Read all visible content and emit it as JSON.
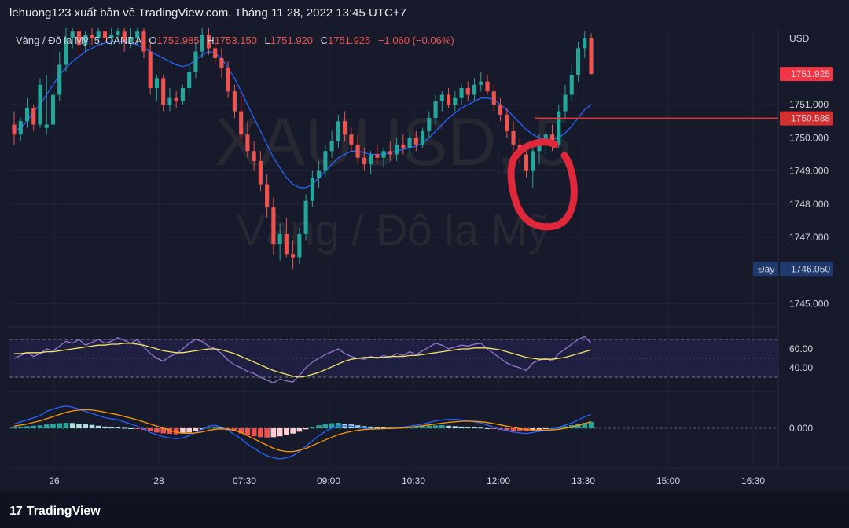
{
  "header": {
    "attribution": "lehuong123 xuất bản về TradingView.com, Tháng 11 28, 2022 13:45 UTC+7"
  },
  "legend": {
    "symbol": "Vàng / Đô la Mỹ, 5, OANDA",
    "open_label": "O",
    "open": "1752.985",
    "high_label": "H",
    "high": "1753.150",
    "low_label": "L",
    "low": "1751.920",
    "close_label": "C",
    "close": "1751.925",
    "change": "−1.060 (−0.06%)"
  },
  "watermark": {
    "ticker": "XAUUSD, 5",
    "name": "Vàng / Đô la Mỹ"
  },
  "price_axis": {
    "currency": "USD",
    "last_price": "1751.925",
    "line_price": "1750.588",
    "low_tag": "Đáy",
    "low_price": "1746.050"
  },
  "footer": {
    "logo": "17",
    "brand": "TradingView"
  },
  "colors": {
    "up": "#26a69a",
    "down": "#ef5350",
    "ma": "#2962ff",
    "rsi": "#9575cd",
    "rsi_ma": "#f5e663",
    "macd": "#2962ff",
    "signal": "#ff9800",
    "annotation": "#e0283b"
  },
  "chart_data": [
    {
      "type": "candlestick",
      "title": "XAUUSD, 5",
      "ylim": [
        1744.4,
        1753.3
      ],
      "yticks": [
        "1745.000",
        "1747.000",
        "1748.000",
        "1749.000",
        "1750.000",
        "1751.000"
      ],
      "xticks": [
        "26",
        "28",
        "07:30",
        "09:00",
        "10:30",
        "12:00",
        "13:30",
        "15:00",
        "16:30"
      ],
      "horizontal_line": 1750.588,
      "last_price": 1751.925,
      "low_marker": 1746.05,
      "ohlc": [
        [
          1750.4,
          1750.8,
          1749.8,
          1750.1
        ],
        [
          1750.1,
          1750.6,
          1749.9,
          1750.5
        ],
        [
          1750.5,
          1751.2,
          1750.3,
          1750.9
        ],
        [
          1750.9,
          1751.0,
          1750.2,
          1750.4
        ],
        [
          1750.4,
          1751.8,
          1750.3,
          1751.6
        ],
        [
          1750.3,
          1751.9,
          1750.1,
          1750.4
        ],
        [
          1750.4,
          1751.4,
          1750.3,
          1751.3
        ],
        [
          1751.3,
          1752.6,
          1751.1,
          1752.2
        ],
        [
          1752.2,
          1753.3,
          1752.0,
          1753.0
        ],
        [
          1753.0,
          1753.3,
          1752.7,
          1753.2
        ],
        [
          1753.2,
          1753.3,
          1752.5,
          1752.8
        ],
        [
          1752.8,
          1753.2,
          1752.6,
          1753.1
        ],
        [
          1753.1,
          1753.3,
          1752.8,
          1753.0
        ],
        [
          1753.0,
          1753.3,
          1752.9,
          1753.2
        ],
        [
          1753.2,
          1753.3,
          1752.9,
          1753.0
        ],
        [
          1753.0,
          1753.3,
          1752.8,
          1753.1
        ],
        [
          1753.1,
          1753.3,
          1752.9,
          1753.2
        ],
        [
          1753.2,
          1753.3,
          1752.6,
          1752.9
        ],
        [
          1752.9,
          1753.3,
          1752.7,
          1753.0
        ],
        [
          1753.0,
          1753.3,
          1752.8,
          1753.2
        ],
        [
          1753.2,
          1753.3,
          1752.4,
          1752.6
        ],
        [
          1752.6,
          1752.9,
          1751.3,
          1751.5
        ],
        [
          1751.5,
          1751.9,
          1751.1,
          1751.8
        ],
        [
          1751.8,
          1751.9,
          1750.8,
          1751.0
        ],
        [
          1751.0,
          1751.5,
          1750.8,
          1751.2
        ],
        [
          1751.2,
          1751.4,
          1750.9,
          1751.1
        ],
        [
          1751.1,
          1751.6,
          1751.0,
          1751.5
        ],
        [
          1751.5,
          1752.2,
          1751.3,
          1752.0
        ],
        [
          1752.0,
          1752.9,
          1751.8,
          1752.6
        ],
        [
          1752.6,
          1753.3,
          1752.4,
          1753.1
        ],
        [
          1753.1,
          1753.3,
          1752.5,
          1752.7
        ],
        [
          1752.7,
          1753.0,
          1752.2,
          1752.4
        ],
        [
          1752.4,
          1752.7,
          1751.8,
          1752.1
        ],
        [
          1752.1,
          1752.3,
          1751.2,
          1751.4
        ],
        [
          1751.4,
          1751.6,
          1750.6,
          1750.8
        ],
        [
          1750.8,
          1751.3,
          1749.9,
          1750.1
        ],
        [
          1750.1,
          1750.5,
          1749.4,
          1749.6
        ],
        [
          1749.6,
          1749.9,
          1749.0,
          1749.3
        ],
        [
          1749.3,
          1749.6,
          1748.4,
          1748.6
        ],
        [
          1748.6,
          1748.9,
          1747.6,
          1747.9
        ],
        [
          1747.9,
          1748.2,
          1746.5,
          1746.8
        ],
        [
          1746.8,
          1747.4,
          1746.3,
          1747.1
        ],
        [
          1747.1,
          1747.6,
          1746.4,
          1746.5
        ],
        [
          1746.5,
          1746.9,
          1746.05,
          1746.4
        ],
        [
          1746.4,
          1747.3,
          1746.2,
          1747.1
        ],
        [
          1747.1,
          1748.3,
          1746.9,
          1748.1
        ],
        [
          1748.1,
          1749.0,
          1747.9,
          1748.8
        ],
        [
          1748.8,
          1749.3,
          1748.5,
          1749.0
        ],
        [
          1749.0,
          1749.8,
          1748.8,
          1749.6
        ],
        [
          1749.6,
          1750.2,
          1749.4,
          1749.9
        ],
        [
          1749.9,
          1750.7,
          1749.7,
          1750.5
        ],
        [
          1750.5,
          1750.8,
          1749.9,
          1750.1
        ],
        [
          1750.1,
          1750.3,
          1749.6,
          1749.8
        ],
        [
          1749.8,
          1750.1,
          1749.2,
          1749.4
        ],
        [
          1749.4,
          1749.7,
          1749.0,
          1749.2
        ],
        [
          1749.2,
          1749.6,
          1748.9,
          1749.5
        ],
        [
          1749.5,
          1749.8,
          1749.2,
          1749.4
        ],
        [
          1749.4,
          1749.7,
          1749.1,
          1749.6
        ],
        [
          1749.6,
          1749.9,
          1749.3,
          1749.5
        ],
        [
          1749.5,
          1750.0,
          1749.3,
          1749.8
        ],
        [
          1749.8,
          1750.1,
          1749.5,
          1749.7
        ],
        [
          1749.7,
          1750.1,
          1749.5,
          1750.0
        ],
        [
          1750.0,
          1750.2,
          1749.6,
          1749.8
        ],
        [
          1749.8,
          1750.3,
          1749.7,
          1750.2
        ],
        [
          1750.2,
          1750.8,
          1750.0,
          1750.6
        ],
        [
          1750.6,
          1751.3,
          1750.4,
          1751.1
        ],
        [
          1751.1,
          1751.4,
          1750.8,
          1751.3
        ],
        [
          1751.3,
          1751.5,
          1750.9,
          1751.0
        ],
        [
          1751.0,
          1751.4,
          1750.8,
          1751.2
        ],
        [
          1751.2,
          1751.6,
          1751.0,
          1751.5
        ],
        [
          1751.5,
          1751.7,
          1751.1,
          1751.3
        ],
        [
          1751.3,
          1751.8,
          1751.1,
          1751.6
        ],
        [
          1751.6,
          1752.0,
          1751.4,
          1751.7
        ],
        [
          1751.7,
          1751.9,
          1751.3,
          1751.4
        ],
        [
          1751.4,
          1751.6,
          1750.8,
          1751.0
        ],
        [
          1751.0,
          1751.2,
          1750.5,
          1750.7
        ],
        [
          1750.7,
          1750.9,
          1750.0,
          1750.2
        ],
        [
          1750.2,
          1750.5,
          1749.6,
          1749.8
        ],
        [
          1749.8,
          1750.0,
          1749.2,
          1749.5
        ],
        [
          1749.5,
          1749.7,
          1748.8,
          1749.0
        ],
        [
          1749.0,
          1749.8,
          1748.5,
          1749.6
        ],
        [
          1749.6,
          1750.1,
          1749.2,
          1749.9
        ],
        [
          1749.9,
          1750.2,
          1749.5,
          1750.1
        ],
        [
          1750.1,
          1750.4,
          1749.6,
          1749.8
        ],
        [
          1749.8,
          1751.0,
          1749.7,
          1750.8
        ],
        [
          1750.8,
          1751.6,
          1750.6,
          1751.3
        ],
        [
          1751.3,
          1752.2,
          1751.1,
          1751.9
        ],
        [
          1751.9,
          1752.9,
          1751.7,
          1752.7
        ],
        [
          1752.7,
          1753.2,
          1752.4,
          1753.0
        ],
        [
          1753.0,
          1753.15,
          1751.9,
          1751.925
        ]
      ],
      "ma": [
        1750.2,
        1750.3,
        1750.5,
        1750.8,
        1751.0,
        1751.3,
        1751.6,
        1751.9,
        1752.1,
        1752.3,
        1752.45,
        1752.6,
        1752.7,
        1752.8,
        1752.85,
        1752.9,
        1752.9,
        1752.9,
        1752.85,
        1752.8,
        1752.7,
        1752.6,
        1752.5,
        1752.4,
        1752.3,
        1752.2,
        1752.15,
        1752.2,
        1752.35,
        1752.5,
        1752.6,
        1752.55,
        1752.4,
        1752.1,
        1751.8,
        1751.4,
        1751.0,
        1750.6,
        1750.2,
        1749.8,
        1749.4,
        1749.1,
        1748.8,
        1748.6,
        1748.5,
        1748.5,
        1748.6,
        1748.8,
        1749.0,
        1749.2,
        1749.4,
        1749.5,
        1749.6,
        1749.6,
        1749.55,
        1749.5,
        1749.5,
        1749.5,
        1749.55,
        1749.6,
        1749.65,
        1749.7,
        1749.75,
        1749.85,
        1750.0,
        1750.2,
        1750.4,
        1750.6,
        1750.75,
        1750.9,
        1751.0,
        1751.1,
        1751.2,
        1751.2,
        1751.15,
        1751.0,
        1750.85,
        1750.65,
        1750.45,
        1750.25,
        1750.1,
        1750.0,
        1749.95,
        1749.95,
        1750.0,
        1750.15,
        1750.35,
        1750.6,
        1750.85,
        1751.0
      ]
    },
    {
      "type": "line",
      "title": "RSI",
      "ylim": [
        20,
        80
      ],
      "yticks": [
        "60.00",
        "40.00"
      ],
      "band": [
        30,
        70
      ],
      "series": [
        {
          "values": [
            50,
            53,
            56,
            52,
            55,
            60,
            58,
            63,
            68,
            66,
            70,
            64,
            67,
            70,
            66,
            68,
            72,
            69,
            66,
            70,
            62,
            55,
            50,
            47,
            52,
            55,
            60,
            66,
            70,
            68,
            63,
            60,
            55,
            48,
            43,
            40,
            36,
            34,
            30,
            27,
            24,
            28,
            26,
            25,
            32,
            40,
            46,
            50,
            54,
            57,
            60,
            55,
            52,
            50,
            49,
            52,
            50,
            53,
            51,
            55,
            53,
            57,
            54,
            58,
            62,
            66,
            64,
            60,
            62,
            64,
            63,
            65,
            66,
            60,
            55,
            50,
            45,
            42,
            40,
            37,
            45,
            48,
            50,
            47,
            55,
            60,
            65,
            70,
            73,
            66
          ]
        },
        {
          "values": [
            55,
            55,
            56,
            56,
            56,
            57,
            57,
            58,
            59,
            60,
            61,
            62,
            63,
            64,
            64,
            65,
            65,
            66,
            66,
            65,
            64,
            62,
            60,
            58,
            57,
            56,
            56,
            57,
            58,
            59,
            60,
            60,
            59,
            57,
            55,
            52,
            49,
            46,
            43,
            40,
            37,
            35,
            33,
            31,
            30,
            31,
            33,
            35,
            38,
            41,
            44,
            47,
            49,
            50,
            51,
            51,
            51,
            51,
            52,
            52,
            52,
            53,
            53,
            54,
            55,
            56,
            57,
            58,
            59,
            60,
            60,
            61,
            61,
            61,
            60,
            59,
            57,
            55,
            53,
            51,
            50,
            49,
            49,
            49,
            50,
            51,
            53,
            55,
            57,
            59
          ]
        }
      ]
    },
    {
      "type": "bar",
      "title": "MACD",
      "ylim": [
        -1.6,
        1.6
      ],
      "yticks": [
        "0.000"
      ],
      "histogram": [
        0.05,
        0.08,
        0.1,
        0.12,
        0.14,
        0.18,
        0.2,
        0.24,
        0.26,
        0.25,
        0.22,
        0.2,
        0.16,
        0.12,
        0.08,
        0.06,
        0.04,
        0.02,
        0.0,
        -0.03,
        -0.08,
        -0.14,
        -0.2,
        -0.24,
        -0.26,
        -0.28,
        -0.25,
        -0.2,
        -0.12,
        -0.05,
        0.02,
        0.06,
        0.03,
        -0.05,
        -0.14,
        -0.24,
        -0.32,
        -0.38,
        -0.42,
        -0.44,
        -0.42,
        -0.38,
        -0.32,
        -0.25,
        -0.16,
        -0.05,
        0.06,
        0.14,
        0.2,
        0.24,
        0.26,
        0.22,
        0.18,
        0.14,
        0.1,
        0.08,
        0.06,
        0.04,
        0.03,
        0.02,
        0.03,
        0.05,
        0.08,
        0.1,
        0.12,
        0.14,
        0.15,
        0.12,
        0.1,
        0.08,
        0.06,
        0.04,
        0.03,
        0.0,
        -0.04,
        -0.08,
        -0.1,
        -0.12,
        -0.13,
        -0.14,
        -0.1,
        -0.06,
        -0.03,
        0.0,
        0.05,
        0.1,
        0.15,
        0.2,
        0.26,
        0.3
      ],
      "series": [
        {
          "values": [
            0.2,
            0.3,
            0.4,
            0.5,
            0.6,
            0.8,
            0.9,
            1.0,
            1.05,
            1.0,
            0.9,
            0.8,
            0.7,
            0.6,
            0.5,
            0.45,
            0.4,
            0.3,
            0.2,
            0.1,
            -0.05,
            -0.2,
            -0.3,
            -0.4,
            -0.45,
            -0.5,
            -0.45,
            -0.35,
            -0.2,
            -0.05,
            0.1,
            0.15,
            0.05,
            -0.1,
            -0.3,
            -0.5,
            -0.75,
            -0.95,
            -1.15,
            -1.3,
            -1.4,
            -1.45,
            -1.4,
            -1.3,
            -1.1,
            -0.85,
            -0.6,
            -0.35,
            -0.15,
            0.0,
            0.1,
            0.12,
            0.1,
            0.05,
            0.0,
            -0.02,
            -0.03,
            -0.02,
            0.0,
            0.02,
            0.05,
            0.1,
            0.15,
            0.2,
            0.27,
            0.35,
            0.4,
            0.42,
            0.42,
            0.4,
            0.35,
            0.3,
            0.25,
            0.15,
            0.05,
            -0.05,
            -0.12,
            -0.18,
            -0.22,
            -0.25,
            -0.2,
            -0.15,
            -0.1,
            -0.05,
            0.05,
            0.15,
            0.25,
            0.4,
            0.55,
            0.65
          ]
        },
        {
          "values": [
            0.1,
            0.15,
            0.2,
            0.28,
            0.35,
            0.45,
            0.55,
            0.65,
            0.75,
            0.82,
            0.86,
            0.88,
            0.86,
            0.82,
            0.76,
            0.7,
            0.64,
            0.56,
            0.48,
            0.4,
            0.3,
            0.2,
            0.1,
            0.0,
            -0.1,
            -0.18,
            -0.22,
            -0.24,
            -0.22,
            -0.17,
            -0.1,
            -0.05,
            -0.03,
            -0.05,
            -0.1,
            -0.2,
            -0.35,
            -0.5,
            -0.65,
            -0.8,
            -0.95,
            -1.05,
            -1.1,
            -1.1,
            -1.05,
            -0.95,
            -0.82,
            -0.68,
            -0.55,
            -0.42,
            -0.3,
            -0.22,
            -0.15,
            -0.1,
            -0.06,
            -0.04,
            -0.03,
            -0.02,
            -0.01,
            0.0,
            0.02,
            0.05,
            0.08,
            0.12,
            0.16,
            0.2,
            0.24,
            0.28,
            0.31,
            0.33,
            0.34,
            0.33,
            0.31,
            0.27,
            0.22,
            0.16,
            0.1,
            0.04,
            -0.02,
            -0.06,
            -0.08,
            -0.09,
            -0.09,
            -0.08,
            -0.05,
            0.0,
            0.06,
            0.14,
            0.22,
            0.32
          ]
        }
      ]
    }
  ]
}
